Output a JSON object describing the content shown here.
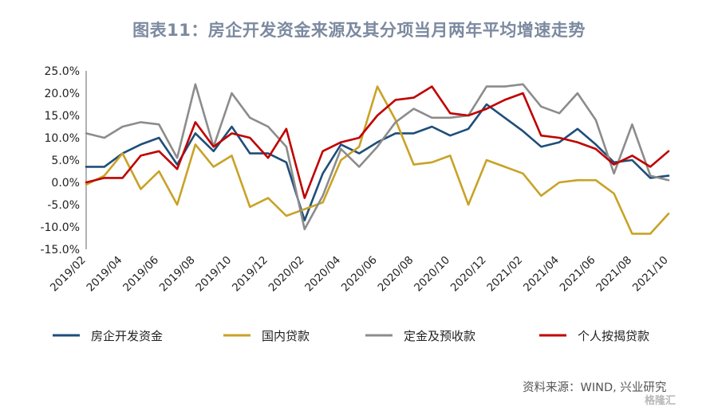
{
  "title": "图表11：房企开发资金来源及其分项当月两年平均增速走势",
  "source": "资料来源：WIND, 兴业研究",
  "watermark": "格隆汇",
  "chart_data": {
    "type": "line",
    "ylim": [
      -15,
      25
    ],
    "yticks": [
      25,
      20,
      15,
      10,
      5,
      0,
      -5,
      -10,
      -15
    ],
    "ytick_labels": [
      "25.0%",
      "20.0%",
      "15.0%",
      "10.0%",
      "5.0%",
      "0.0%",
      "-5.0%",
      "-10.0%",
      "-15.0%"
    ],
    "x": [
      "2019/02",
      "2019/03",
      "2019/04",
      "2019/05",
      "2019/06",
      "2019/07",
      "2019/08",
      "2019/09",
      "2019/10",
      "2019/11",
      "2019/12",
      "2020/01",
      "2020/02",
      "2020/03",
      "2020/04",
      "2020/05",
      "2020/06",
      "2020/07",
      "2020/08",
      "2020/09",
      "2020/10",
      "2020/11",
      "2020/12",
      "2021/01",
      "2021/02",
      "2021/03",
      "2021/04",
      "2021/05",
      "2021/06",
      "2021/07",
      "2021/08",
      "2021/09",
      "2021/10"
    ],
    "xtick_labels": [
      "2019/02",
      "2019/04",
      "2019/06",
      "2019/08",
      "2019/10",
      "2019/12",
      "2020/02",
      "2020/04",
      "2020/06",
      "2020/08",
      "2020/10",
      "2020/12",
      "2021/02",
      "2021/04",
      "2021/06",
      "2021/08",
      "2021/10"
    ],
    "series": [
      {
        "name": "房企开发资金",
        "color": "#1f4e79",
        "values": [
          3.5,
          3.5,
          6.5,
          8.5,
          10.0,
          4.0,
          11.0,
          7.0,
          12.5,
          6.5,
          6.5,
          4.5,
          -8.5,
          2.0,
          8.5,
          6.5,
          9.0,
          11.0,
          11.0,
          12.5,
          10.5,
          12.0,
          17.5,
          14.5,
          11.5,
          8.0,
          9.0,
          12.0,
          8.5,
          4.5,
          5.0,
          1.0,
          1.5
        ]
      },
      {
        "name": "国内贷款",
        "color": "#c9a227",
        "values": [
          -0.5,
          1.5,
          6.5,
          -1.5,
          2.5,
          -5.0,
          8.5,
          3.5,
          6.0,
          -5.5,
          -3.5,
          -7.5,
          -6.0,
          -4.5,
          5.0,
          8.0,
          21.5,
          14.0,
          4.0,
          4.5,
          6.0,
          -5.0,
          5.0,
          3.5,
          2.0,
          -3.0,
          0.0,
          0.5,
          0.5,
          -2.5,
          -11.5,
          -11.5,
          -7.0
        ]
      },
      {
        "name": "定金及预收款",
        "color": "#8c8c8c",
        "values": [
          11.0,
          10.0,
          12.5,
          13.5,
          13.0,
          5.5,
          22.0,
          8.0,
          20.0,
          14.5,
          12.5,
          8.0,
          -10.5,
          -3.0,
          7.5,
          3.5,
          8.0,
          13.5,
          16.5,
          14.5,
          14.5,
          15.0,
          21.5,
          21.5,
          22.0,
          17.0,
          15.5,
          20.0,
          14.0,
          2.0,
          13.0,
          1.5,
          0.5
        ]
      },
      {
        "name": "个人按揭贷款",
        "color": "#c00000",
        "values": [
          0.0,
          1.0,
          1.0,
          6.0,
          7.0,
          3.0,
          13.5,
          8.0,
          11.0,
          10.0,
          5.5,
          12.0,
          -3.5,
          7.0,
          9.0,
          10.0,
          15.0,
          18.5,
          19.0,
          21.5,
          15.5,
          15.0,
          16.5,
          18.5,
          20.0,
          10.5,
          10.0,
          9.0,
          7.5,
          4.0,
          6.0,
          3.5,
          7.0
        ]
      }
    ]
  }
}
